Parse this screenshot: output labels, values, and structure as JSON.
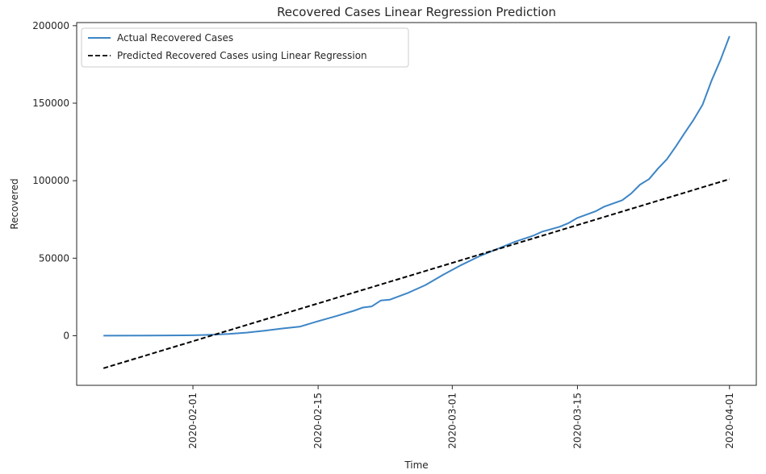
{
  "chart_data": {
    "type": "line",
    "title": "Recovered Cases Linear Regression Prediction",
    "xlabel": "Time",
    "ylabel": "Recovered",
    "xlim": [
      "2020-01-22",
      "2020-04-01"
    ],
    "ylim": [
      -32000,
      202000
    ],
    "x_ticks": [
      "2020-02-01",
      "2020-02-15",
      "2020-03-01",
      "2020-03-15",
      "2020-04-01"
    ],
    "y_ticks": [
      0,
      50000,
      100000,
      150000,
      200000
    ],
    "grid": false,
    "legend_position": "top-left",
    "series": [
      {
        "name": "Actual Recovered Cases",
        "color": "#3d85c6",
        "style": "solid",
        "points": [
          [
            "2020-01-22",
            28
          ],
          [
            "2020-01-27",
            107
          ],
          [
            "2020-01-31",
            222
          ],
          [
            "2020-02-01",
            284
          ],
          [
            "2020-02-03",
            615
          ],
          [
            "2020-02-05",
            1124
          ],
          [
            "2020-02-07",
            2011
          ],
          [
            "2020-02-09",
            3244
          ],
          [
            "2020-02-11",
            4683
          ],
          [
            "2020-02-13",
            5900
          ],
          [
            "2020-02-15",
            9395
          ],
          [
            "2020-02-17",
            12600
          ],
          [
            "2020-02-19",
            16100
          ],
          [
            "2020-02-20",
            18200
          ],
          [
            "2020-02-21",
            18900
          ],
          [
            "2020-02-22",
            22700
          ],
          [
            "2020-02-23",
            23200
          ],
          [
            "2020-02-25",
            27500
          ],
          [
            "2020-02-27",
            32700
          ],
          [
            "2020-02-29",
            39400
          ],
          [
            "2020-03-02",
            45600
          ],
          [
            "2020-03-04",
            51200
          ],
          [
            "2020-03-06",
            55900
          ],
          [
            "2020-03-08",
            60600
          ],
          [
            "2020-03-10",
            64400
          ],
          [
            "2020-03-11",
            67000
          ],
          [
            "2020-03-13",
            70300
          ],
          [
            "2020-03-14",
            72600
          ],
          [
            "2020-03-15",
            76000
          ],
          [
            "2020-03-17",
            80200
          ],
          [
            "2020-03-18",
            83300
          ],
          [
            "2020-03-20",
            87400
          ],
          [
            "2020-03-21",
            91700
          ],
          [
            "2020-03-22",
            97500
          ],
          [
            "2020-03-23",
            101000
          ],
          [
            "2020-03-24",
            107800
          ],
          [
            "2020-03-25",
            113800
          ],
          [
            "2020-03-26",
            122100
          ],
          [
            "2020-03-27",
            130900
          ],
          [
            "2020-03-28",
            139400
          ],
          [
            "2020-03-29",
            149100
          ],
          [
            "2020-03-30",
            164600
          ],
          [
            "2020-03-31",
            178000
          ],
          [
            "2020-04-01",
            193200
          ]
        ]
      },
      {
        "name": "Predicted Recovered Cases using Linear Regression",
        "color": "#000000",
        "style": "dashed",
        "points": [
          [
            "2020-01-22",
            -21000
          ],
          [
            "2020-04-01",
            101000
          ]
        ]
      }
    ]
  }
}
